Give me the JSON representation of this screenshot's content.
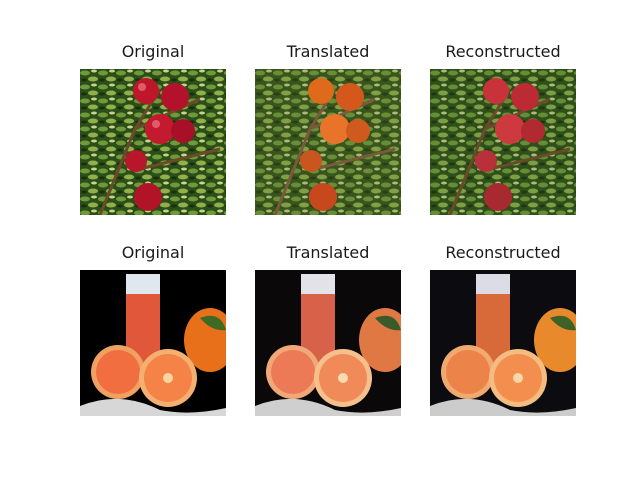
{
  "rows": [
    {
      "scene": "apples-on-tree",
      "panels": [
        {
          "title": "Original",
          "variant": "original"
        },
        {
          "title": "Translated",
          "variant": "translated"
        },
        {
          "title": "Reconstructed",
          "variant": "reconstructed"
        }
      ]
    },
    {
      "scene": "orange-juice-with-oranges",
      "panels": [
        {
          "title": "Original",
          "variant": "original"
        },
        {
          "title": "Translated",
          "variant": "translated"
        },
        {
          "title": "Reconstructed",
          "variant": "reconstructed"
        }
      ]
    }
  ],
  "colors": {
    "apple_original": "#c0162c",
    "apple_translated": "#e0661e",
    "apple_reconstructed": "#c8323a",
    "juice_original": "#e0573a",
    "juice_translated": "#d8614a",
    "juice_reconstructed": "#d86a3a",
    "foliage": "#2f5a1c"
  }
}
